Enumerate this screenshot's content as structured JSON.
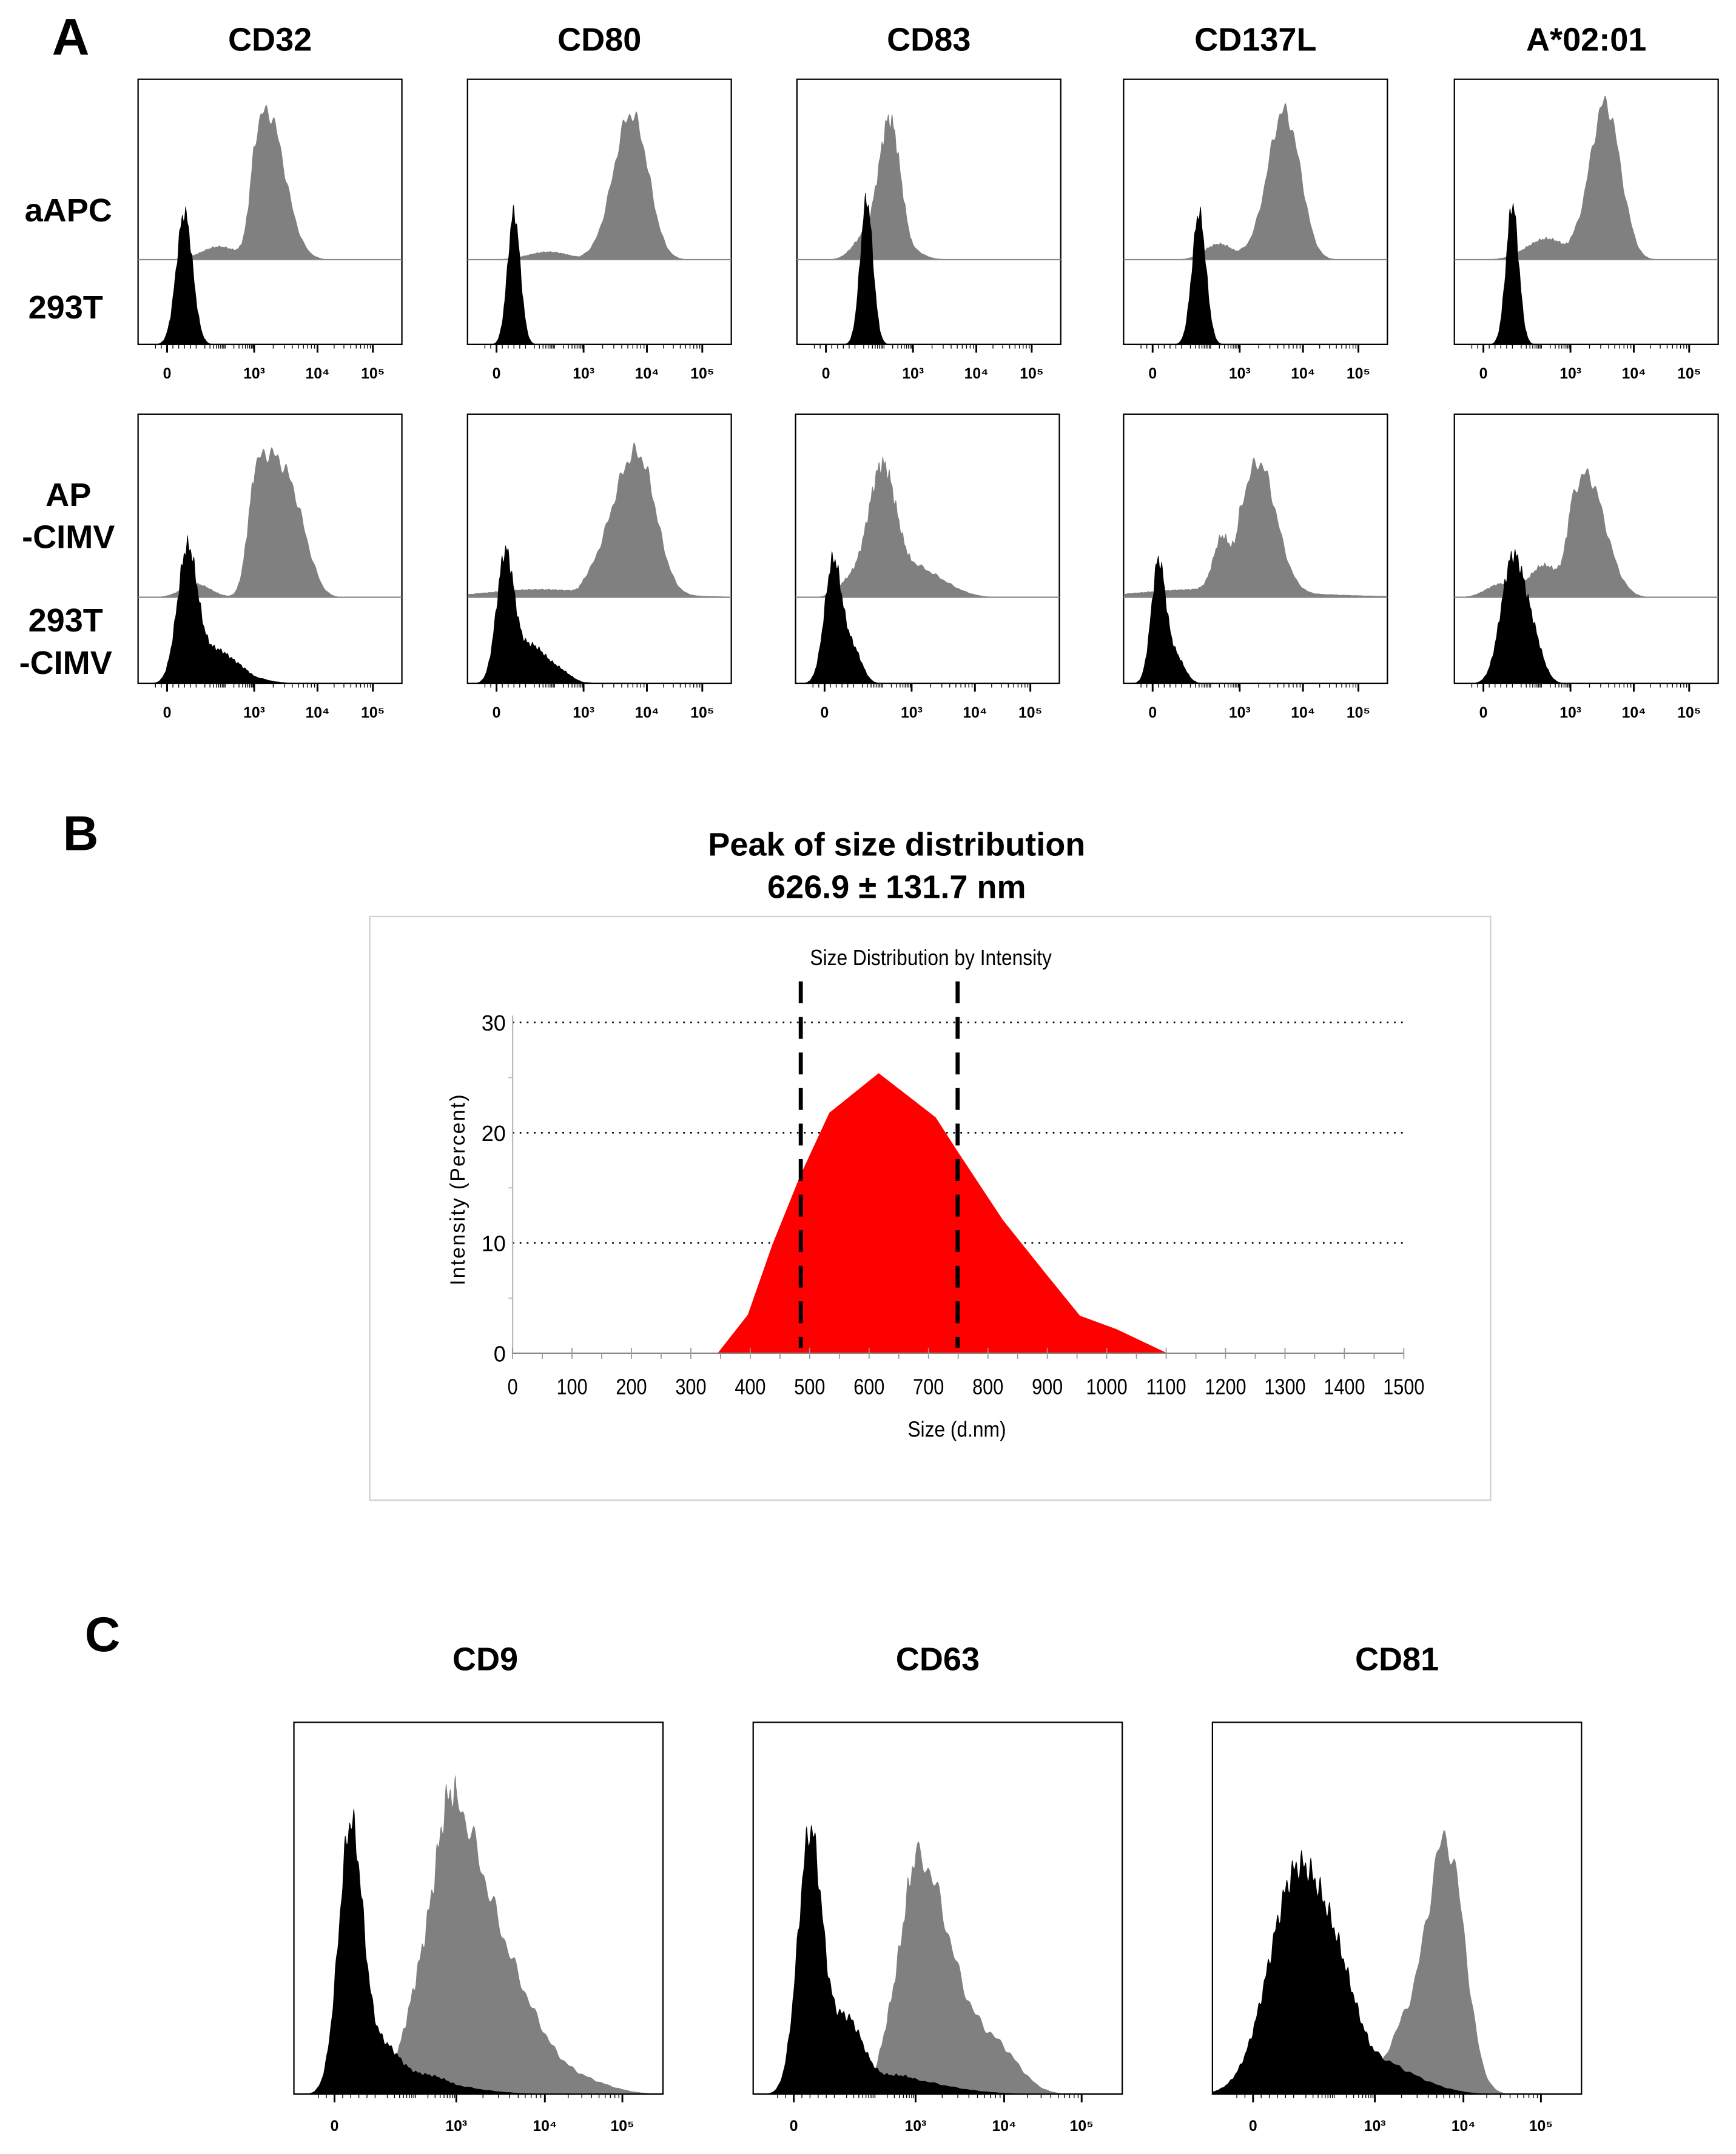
{
  "panel_a": {
    "letter": "A",
    "columns": [
      "CD32",
      "CD80",
      "CD83",
      "CD137L",
      "A*02:01"
    ],
    "tick_labels": [
      "0",
      "10³",
      "10⁴",
      "10⁵"
    ],
    "rows": [
      {
        "top_label": [
          "aAPC"
        ],
        "bottom_label": [
          "293T"
        ],
        "panels": [
          {
            "gray": [
              [
                3.2,
                0.28,
                0.56
              ],
              [
                1.8,
                0.6,
                0.05
              ]
            ],
            "black": [
              [
                0.6,
                0.28,
                0.5
              ]
            ]
          },
          {
            "gray": [
              [
                3.75,
                0.28,
                0.55
              ],
              [
                1.8,
                0.7,
                0.03
              ]
            ],
            "black": [
              [
                0.6,
                0.22,
                0.5
              ]
            ]
          },
          {
            "gray": [
              [
                2.2,
                0.38,
                0.53
              ],
              [
                1.3,
                0.4,
                0.08
              ]
            ],
            "black": [
              [
                1.4,
                0.22,
                0.55
              ]
            ]
          },
          {
            "gray": [
              [
                3.7,
                0.26,
                0.56
              ],
              [
                2.3,
                0.5,
                0.06
              ]
            ],
            "black": [
              [
                1.6,
                0.24,
                0.5
              ]
            ]
          },
          {
            "gray": [
              [
                3.55,
                0.24,
                0.58
              ],
              [
                2.2,
                0.7,
                0.08
              ]
            ],
            "black": [
              [
                1.0,
                0.22,
                0.53
              ]
            ]
          }
        ]
      },
      {
        "top_label": [
          "AP",
          "-CIMV"
        ],
        "bottom_label": [
          "293T",
          "-CIMV"
        ],
        "panels": [
          {
            "gray": [
              [
                3.1,
                0.3,
                0.48
              ],
              [
                3.6,
                0.25,
                0.3
              ],
              [
                1.0,
                0.5,
                0.05
              ]
            ],
            "black": [
              [
                0.7,
                0.35,
                0.5
              ],
              [
                1.7,
                0.5,
                0.12
              ],
              [
                2.6,
                0.4,
                0.04
              ]
            ]
          },
          {
            "gray": [
              [
                3.9,
                0.3,
                0.44
              ],
              [
                3.5,
                0.3,
                0.18
              ],
              [
                1.5,
                1.8,
                0.03
              ]
            ],
            "black": [
              [
                0.3,
                0.3,
                0.47
              ],
              [
                1.2,
                0.5,
                0.14
              ],
              [
                2.2,
                0.4,
                0.04
              ]
            ]
          },
          {
            "gray": [
              [
                2.0,
                0.5,
                0.5
              ],
              [
                3.2,
                0.4,
                0.08
              ],
              [
                0.8,
                0.4,
                0.05
              ]
            ],
            "black": [
              [
                0.3,
                0.3,
                0.46
              ],
              [
                1.0,
                0.3,
                0.12
              ]
            ]
          },
          {
            "gray": [
              [
                3.3,
                0.28,
                0.48
              ],
              [
                2.4,
                0.3,
                0.2
              ],
              [
                1.6,
                2.0,
                0.03
              ]
            ],
            "black": [
              [
                0.2,
                0.25,
                0.45
              ],
              [
                0.8,
                0.3,
                0.1
              ]
            ]
          },
          {
            "gray": [
              [
                3.25,
                0.3,
                0.45
              ],
              [
                2.1,
                0.5,
                0.12
              ],
              [
                0.6,
                0.5,
                0.05
              ]
            ],
            "black": [
              [
                1.0,
                0.4,
                0.46
              ],
              [
                1.7,
                0.35,
                0.15
              ]
            ]
          }
        ]
      }
    ]
  },
  "panel_b": {
    "letter": "B",
    "title_line1": "Peak of size distribution",
    "title_line2": "626.9 ± 131.7 nm"
  },
  "chart_data": {
    "type": "area",
    "title": "Size Distribution by Intensity",
    "xlabel": "Size (d.nm)",
    "ylabel": "Intensity (Percent)",
    "xlim": [
      0,
      1500
    ],
    "ylim": [
      0,
      30
    ],
    "x_ticks": [
      "0",
      "100",
      "200",
      "300",
      "400",
      "500",
      "600",
      "700",
      "800",
      "900",
      "1000",
      "1100",
      "1200",
      "1300",
      "1400",
      "1500"
    ],
    "y_ticks": [
      "0",
      "10",
      "20",
      "30"
    ],
    "grid": "horizontal dotted",
    "x": [
      345,
      396,
      437,
      484,
      533,
      616,
      712,
      749,
      825,
      899,
      955,
      1016,
      1102
    ],
    "y": [
      0,
      3.5,
      9.8,
      16.1,
      21.8,
      25.4,
      21.4,
      18.3,
      12.1,
      7.1,
      3.4,
      2.2,
      0
    ],
    "fill_color": "#ff0000",
    "dashed_markers": [
      485,
      749
    ]
  },
  "panel_c": {
    "letter": "C",
    "tick_labels": [
      "0",
      "10³",
      "10⁴",
      "10⁵"
    ],
    "panels": [
      {
        "title": "CD9",
        "gray": [
          [
            2.9,
            0.35,
            0.55
          ],
          [
            2.3,
            0.5,
            0.35
          ],
          [
            3.5,
            0.4,
            0.3
          ],
          [
            4.4,
            0.4,
            0.04
          ]
        ],
        "black": [
          [
            0.4,
            0.3,
            0.72
          ],
          [
            1.2,
            0.4,
            0.12
          ],
          [
            2.3,
            0.6,
            0.05
          ]
        ]
      },
      {
        "title": "CD63",
        "gray": [
          [
            3.05,
            0.35,
            0.62
          ],
          [
            2.4,
            0.3,
            0.15
          ],
          [
            3.9,
            0.3,
            0.12
          ]
        ],
        "black": [
          [
            0.4,
            0.3,
            0.7
          ],
          [
            1.3,
            0.4,
            0.2
          ],
          [
            2.6,
            0.6,
            0.05
          ]
        ]
      },
      {
        "title": "CD81",
        "gray": [
          [
            3.8,
            0.22,
            0.68
          ],
          [
            3.3,
            0.2,
            0.15
          ]
        ],
        "black": [
          [
            1.1,
            0.7,
            0.6
          ],
          [
            2.2,
            0.5,
            0.2
          ],
          [
            3.2,
            0.4,
            0.05
          ]
        ]
      }
    ]
  }
}
